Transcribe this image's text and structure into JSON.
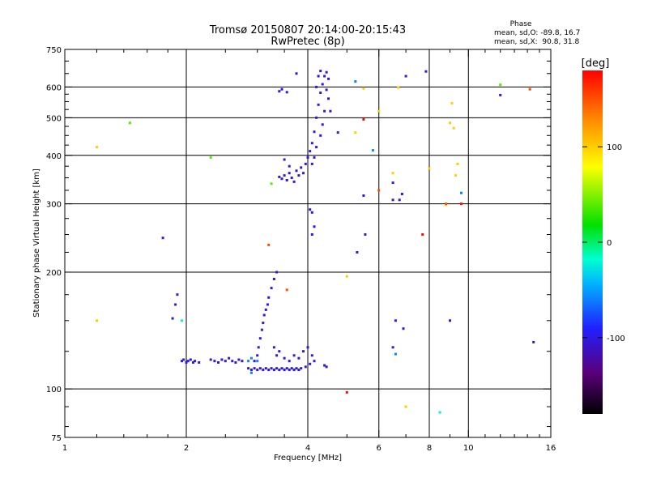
{
  "chart_data": {
    "type": "scatter",
    "title": "Tromsø 20150807 20:14:00-20:15:43",
    "subtitle": "RwPretec (8p)",
    "xlabel": "Frequency [MHz]",
    "ylabel": "Stationary phase Virtual Height [km]",
    "x_scale": "log2",
    "y_scale": "log",
    "xlim": [
      1,
      16
    ],
    "ylim": [
      75,
      750
    ],
    "x_ticks": [
      1,
      2,
      4,
      6,
      8,
      10,
      16
    ],
    "x_tick_labels": [
      "1",
      "2",
      "4",
      "6",
      "8",
      "10",
      "16"
    ],
    "y_ticks": [
      75,
      100,
      200,
      300,
      400,
      500,
      600,
      750
    ],
    "y_tick_labels": [
      "75",
      "100",
      "200",
      "300",
      "400",
      "500",
      "600",
      "750"
    ],
    "grid": true,
    "stats": {
      "heading": "Phase",
      "o_line": "mean, sd,O: -89.8, 16.7",
      "x_line": "mean, sd,X:  90.8, 31.8"
    },
    "colorbar": {
      "label": "[deg]",
      "range": [
        -180,
        180
      ],
      "ticks": [
        100,
        0,
        -100
      ],
      "tick_labels": [
        "100",
        "0",
        "-100"
      ],
      "scheme": "rainbow"
    },
    "series": [
      {
        "phase": -100,
        "points": [
          [
            1.95,
            118
          ],
          [
            1.97,
            119
          ],
          [
            2.0,
            117
          ],
          [
            2.02,
            118
          ],
          [
            2.05,
            119
          ],
          [
            2.08,
            117
          ],
          [
            2.1,
            118
          ],
          [
            2.15,
            117
          ],
          [
            2.3,
            119
          ],
          [
            2.35,
            118
          ],
          [
            2.4,
            117
          ],
          [
            2.45,
            119
          ],
          [
            2.5,
            118
          ],
          [
            2.55,
            120
          ],
          [
            2.6,
            118
          ],
          [
            2.65,
            117
          ],
          [
            2.7,
            119
          ],
          [
            2.75,
            118
          ],
          [
            2.85,
            113
          ],
          [
            2.9,
            112
          ],
          [
            2.95,
            113
          ],
          [
            3.0,
            112
          ],
          [
            3.05,
            113
          ],
          [
            3.1,
            112
          ],
          [
            3.15,
            113
          ],
          [
            3.2,
            112
          ],
          [
            3.25,
            113
          ],
          [
            3.3,
            112
          ],
          [
            3.35,
            113
          ],
          [
            3.4,
            112
          ],
          [
            3.45,
            113
          ],
          [
            3.5,
            112
          ],
          [
            3.55,
            113
          ],
          [
            3.6,
            112
          ],
          [
            3.65,
            113
          ],
          [
            3.7,
            112
          ],
          [
            3.75,
            113
          ],
          [
            3.8,
            112
          ],
          [
            3.85,
            113
          ],
          [
            3.95,
            114
          ],
          [
            4.05,
            116
          ],
          [
            4.4,
            115
          ],
          [
            4.45,
            114
          ],
          [
            2.95,
            118
          ],
          [
            3.0,
            122
          ],
          [
            3.02,
            128
          ],
          [
            3.05,
            135
          ],
          [
            3.08,
            142
          ],
          [
            3.1,
            148
          ],
          [
            3.12,
            155
          ],
          [
            3.15,
            160
          ],
          [
            3.18,
            165
          ],
          [
            3.2,
            172
          ],
          [
            3.25,
            182
          ],
          [
            3.3,
            192
          ],
          [
            3.35,
            200
          ],
          [
            3.3,
            128
          ],
          [
            3.35,
            122
          ],
          [
            3.4,
            125
          ],
          [
            3.5,
            120
          ],
          [
            3.6,
            118
          ],
          [
            3.7,
            122
          ],
          [
            3.8,
            120
          ],
          [
            3.9,
            125
          ],
          [
            4.0,
            128
          ],
          [
            4.1,
            122
          ],
          [
            4.15,
            118
          ],
          [
            3.4,
            352
          ],
          [
            3.45,
            348
          ],
          [
            3.5,
            355
          ],
          [
            3.55,
            345
          ],
          [
            3.6,
            360
          ],
          [
            3.65,
            350
          ],
          [
            3.7,
            342
          ],
          [
            3.75,
            365
          ],
          [
            3.8,
            355
          ],
          [
            3.85,
            372
          ],
          [
            3.9,
            360
          ],
          [
            3.95,
            380
          ],
          [
            4.0,
            395
          ],
          [
            4.05,
            410
          ],
          [
            4.1,
            430
          ],
          [
            4.15,
            460
          ],
          [
            4.2,
            500
          ],
          [
            4.25,
            540
          ],
          [
            4.3,
            580
          ],
          [
            4.35,
            610
          ],
          [
            4.4,
            640
          ],
          [
            4.45,
            655
          ],
          [
            4.5,
            630
          ],
          [
            4.5,
            560
          ],
          [
            4.55,
            520
          ],
          [
            4.2,
            600
          ],
          [
            4.25,
            640
          ],
          [
            4.3,
            660
          ],
          [
            4.1,
            380
          ],
          [
            4.15,
            395
          ],
          [
            4.2,
            420
          ],
          [
            4.3,
            450
          ],
          [
            4.35,
            480
          ],
          [
            4.4,
            520
          ],
          [
            4.45,
            590
          ],
          [
            3.4,
            585
          ],
          [
            3.45,
            592
          ],
          [
            3.55,
            582
          ],
          [
            3.75,
            650
          ],
          [
            4.05,
            290
          ],
          [
            4.1,
            285
          ],
          [
            4.15,
            262
          ],
          [
            4.1,
            250
          ],
          [
            3.5,
            390
          ],
          [
            3.6,
            375
          ],
          [
            1.75,
            245
          ],
          [
            1.9,
            175
          ],
          [
            1.88,
            165
          ],
          [
            1.85,
            152
          ],
          [
            6.5,
            340
          ],
          [
            6.85,
            318
          ],
          [
            6.75,
            307
          ],
          [
            6.5,
            307
          ],
          [
            6.6,
            150
          ],
          [
            6.9,
            143
          ],
          [
            9.0,
            150
          ],
          [
            7.0,
            640
          ],
          [
            7.85,
            658
          ],
          [
            14.5,
            132
          ],
          [
            12.0,
            572
          ],
          [
            5.5,
            315
          ],
          [
            5.55,
            250
          ],
          [
            5.3,
            225
          ],
          [
            4.75,
            458
          ],
          [
            6.5,
            128
          ]
        ]
      },
      {
        "phase": -60,
        "points": [
          [
            2.85,
            118
          ],
          [
            2.9,
            120
          ],
          [
            3.0,
            118
          ],
          [
            2.9,
            110
          ],
          [
            6.6,
            123
          ],
          [
            9.6,
            320
          ],
          [
            5.8,
            412
          ],
          [
            5.25,
            620
          ]
        ]
      },
      {
        "phase": -20,
        "points": [
          [
            8.5,
            87
          ],
          [
            1.95,
            150
          ]
        ]
      },
      {
        "phase": 40,
        "points": [
          [
            1.45,
            485
          ],
          [
            2.3,
            395
          ],
          [
            3.25,
            338
          ],
          [
            12.0,
            608
          ]
        ]
      },
      {
        "phase": 100,
        "points": [
          [
            1.2,
            150
          ],
          [
            1.2,
            420
          ],
          [
            5.25,
            458
          ],
          [
            5.5,
            595
          ],
          [
            6.0,
            520
          ],
          [
            6.5,
            360
          ],
          [
            6.7,
            598
          ],
          [
            8.8,
            298
          ],
          [
            9.4,
            380
          ],
          [
            9.3,
            355
          ],
          [
            5.0,
            195
          ],
          [
            7.0,
            90
          ],
          [
            8.0,
            370
          ],
          [
            9.1,
            545
          ],
          [
            9.0,
            485
          ],
          [
            9.2,
            470
          ]
        ]
      },
      {
        "phase": 150,
        "points": [
          [
            3.2,
            235
          ],
          [
            3.55,
            180
          ],
          [
            8.8,
            300
          ],
          [
            14.2,
            592
          ],
          [
            6.0,
            325
          ]
        ]
      },
      {
        "phase": 175,
        "points": [
          [
            5.5,
            495
          ],
          [
            5.0,
            98
          ],
          [
            7.7,
            250
          ],
          [
            9.6,
            300
          ]
        ]
      }
    ]
  }
}
